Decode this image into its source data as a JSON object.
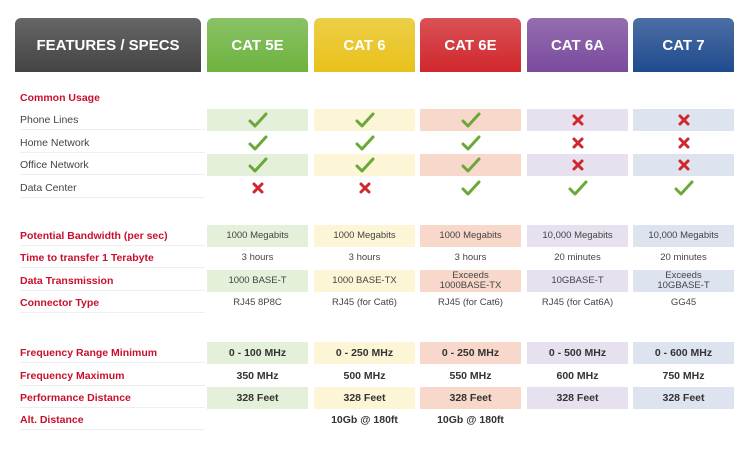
{
  "header": {
    "title": "FEATURES / SPECS",
    "columns": [
      {
        "label": "CAT 5E",
        "color": "#6db33f"
      },
      {
        "label": "CAT 6",
        "color": "#e8c21a"
      },
      {
        "label": "CAT 6E",
        "color": "#d0272c"
      },
      {
        "label": "CAT 6A",
        "color": "#7a4a9c"
      },
      {
        "label": "CAT 7",
        "color": "#1f4b8e"
      }
    ]
  },
  "sections": [
    {
      "title": "Common Usage",
      "rows": [
        {
          "label": "Phone Lines",
          "values": [
            true,
            true,
            true,
            false,
            false
          ]
        },
        {
          "label": "Home Network",
          "values": [
            true,
            true,
            true,
            false,
            false
          ]
        },
        {
          "label": "Office Network",
          "values": [
            true,
            true,
            true,
            false,
            false
          ]
        },
        {
          "label": "Data Center",
          "values": [
            false,
            false,
            true,
            true,
            true
          ]
        }
      ]
    },
    {
      "rows": [
        {
          "label": "Potential Bandwidth (per sec)",
          "values": [
            "1000 Megabits",
            "1000 Megabits",
            "1000 Megabits",
            "10,000 Megabits",
            "10,000 Megabits"
          ]
        },
        {
          "label": "Time to transfer 1 Terabyte",
          "values": [
            "3 hours",
            "3 hours",
            "3 hours",
            "20 minutes",
            "20 minutes"
          ]
        },
        {
          "label": "Data Transmission",
          "values": [
            "1000 BASE-T",
            "1000 BASE-TX",
            "Exceeds\n1000BASE-TX",
            "10GBASE-T",
            "Exceeds\n10GBASE-T"
          ]
        },
        {
          "label": "Connector Type",
          "values": [
            "RJ45 8P8C",
            "RJ45 (for Cat6)",
            "RJ45 (for Cat6)",
            "RJ45 (for Cat6A)",
            "GG45"
          ]
        }
      ]
    },
    {
      "rows": [
        {
          "label": "Frequency Range Minimum",
          "values": [
            "0 - 100 MHz",
            "0 - 250 MHz",
            "0 - 250 MHz",
            "0 - 500 MHz",
            "0 - 600 MHz"
          ]
        },
        {
          "label": "Frequency Maximum",
          "values": [
            "350 MHz",
            "500 MHz",
            "550 MHz",
            "600 MHz",
            "750 MHz"
          ]
        },
        {
          "label": "Performance Distance",
          "values": [
            "328 Feet",
            "328 Feet",
            "328 Feet",
            "328 Feet",
            "328 Feet"
          ]
        },
        {
          "label": "Alt. Distance",
          "values": [
            null,
            "10Gb @ 180ft",
            "10Gb @ 180ft",
            null,
            null
          ]
        }
      ]
    }
  ]
}
